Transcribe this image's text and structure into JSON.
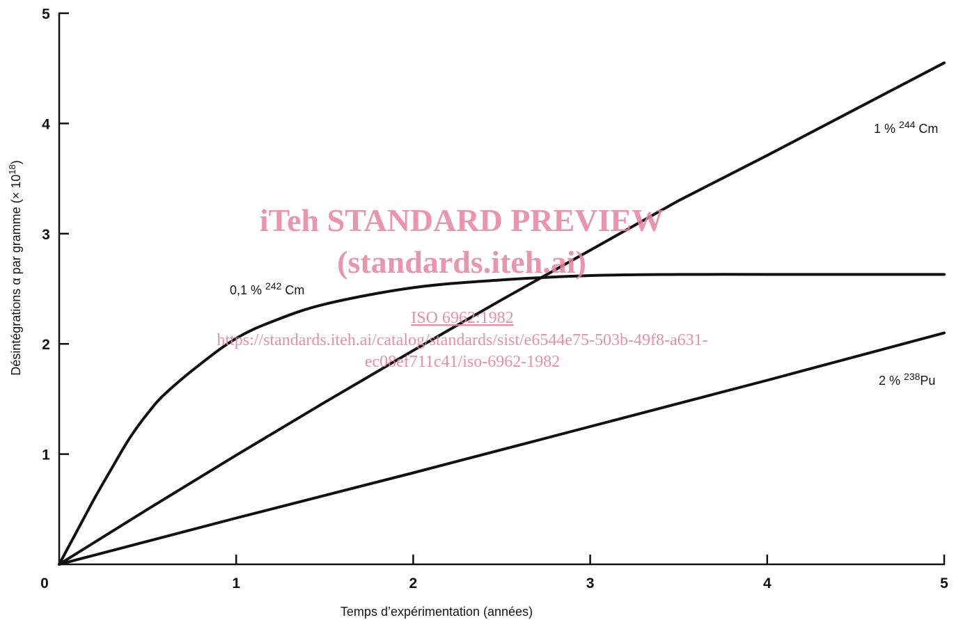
{
  "chart_data": {
    "type": "line",
    "title": "",
    "xlabel": "Temps d’expérimentation (années)",
    "ylabel": "Désintégrations α par gramme (× 10",
    "ylabel_exponent": "18",
    "ylabel_close": ")",
    "xlim": [
      0,
      5
    ],
    "ylim": [
      0,
      5
    ],
    "x_ticks": [
      0,
      1,
      2,
      3,
      4,
      5
    ],
    "y_ticks": [
      1,
      2,
      3,
      4,
      5
    ],
    "x_tick_labels": [
      "0",
      "1",
      "2",
      "3",
      "4",
      "5"
    ],
    "y_tick_labels": [
      "1",
      "2",
      "3",
      "4",
      "5"
    ],
    "grid": false,
    "series": [
      {
        "name_prefix": "0,1 % ",
        "name_isotope": "242",
        "name_element": " Cm",
        "x": [
          0,
          0.1,
          0.2,
          0.3,
          0.4,
          0.5,
          0.6,
          0.8,
          1.0,
          1.2,
          1.5,
          2.0,
          2.5,
          3.0,
          3.5,
          4.0,
          4.5,
          5.0
        ],
        "y": [
          0,
          0.3,
          0.6,
          0.88,
          1.15,
          1.37,
          1.55,
          1.82,
          2.05,
          2.2,
          2.36,
          2.51,
          2.58,
          2.62,
          2.63,
          2.63,
          2.63,
          2.63
        ]
      },
      {
        "name_prefix": "1 % ",
        "name_isotope": "244",
        "name_element": " Cm",
        "x": [
          0,
          0.5,
          1.0,
          1.5,
          2.0,
          2.5,
          3.0,
          3.5,
          4.0,
          4.5,
          5.0
        ],
        "y": [
          0,
          0.5,
          0.99,
          1.47,
          1.94,
          2.4,
          2.85,
          3.3,
          3.71,
          4.13,
          4.55
        ]
      },
      {
        "name_prefix": "2 % ",
        "name_isotope": "238",
        "name_element": "Pu",
        "x": [
          0,
          1.0,
          2.0,
          3.0,
          4.0,
          5.0
        ],
        "y": [
          0,
          0.42,
          0.83,
          1.25,
          1.67,
          2.1
        ]
      }
    ]
  },
  "watermark": {
    "title": "iTeh STANDARD PREVIEW",
    "subtitle": "(standards.iteh.ai)",
    "link": "ISO 6962:1982",
    "url_line1": "https://standards.iteh.ai/catalog/standards/sist/e6544e75-503b-49f8-a631-",
    "url_line2": "ec08ef711c41/iso-6962-1982",
    "color": "#e8829f"
  }
}
